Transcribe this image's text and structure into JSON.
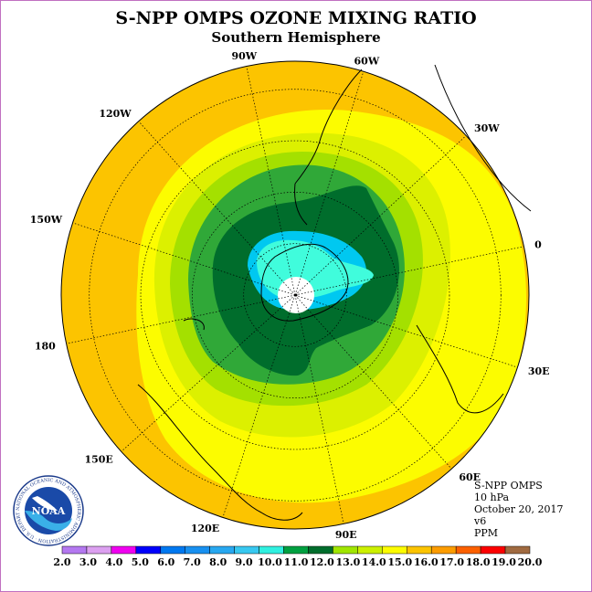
{
  "header": {
    "title": "S-NPP OMPS OZONE MIXING RATIO",
    "subtitle": "Southern Hemisphere"
  },
  "map": {
    "longitude_labels": [
      "90W",
      "60W",
      "30W",
      "0",
      "30E",
      "60E",
      "90E",
      "120E",
      "150E",
      "180",
      "150W",
      "120W"
    ],
    "zone_colors": {
      "outer": "#fcc400",
      "ring_yellow": "#fcfc00",
      "ring_yellowgreen": "#dcf000",
      "ring_green": "#a4e000",
      "ring_mid": "#30a838",
      "ring_dark": "#006d2c",
      "ring_cyan": "#00c8f0",
      "ring_light": "#40fcdc",
      "polar_hole": "#ffffff"
    }
  },
  "info": {
    "instrument": "S-NPP OMPS",
    "level": "10 hPa",
    "date": "October 20, 2017",
    "version": "v6",
    "units": "PPM"
  },
  "logo": {
    "name": "NOAA",
    "ring_text": "NATIONAL OCEANIC AND ATMOSPHERIC ADMINISTRATION · U.S. DEPARTMENT OF COMMERCE ·"
  },
  "colorbar": {
    "labels": [
      "2.0",
      "3.0",
      "4.0",
      "5.0",
      "6.0",
      "7.0",
      "8.0",
      "9.0",
      "10.0",
      "11.0",
      "12.0",
      "13.0",
      "14.0",
      "15.0",
      "16.0",
      "17.0",
      "18.0",
      "19.0",
      "20.0"
    ],
    "colors": [
      "#b478f0",
      "#dca0f0",
      "#f000f0",
      "#0000fc",
      "#0078f0",
      "#1890f0",
      "#28a8f0",
      "#38c8f0",
      "#30f0e0",
      "#00a040",
      "#006d2c",
      "#a0e600",
      "#ccf000",
      "#fcfc00",
      "#fcc400",
      "#fc9c00",
      "#fc6000",
      "#fc0000",
      "#a06a40"
    ]
  }
}
